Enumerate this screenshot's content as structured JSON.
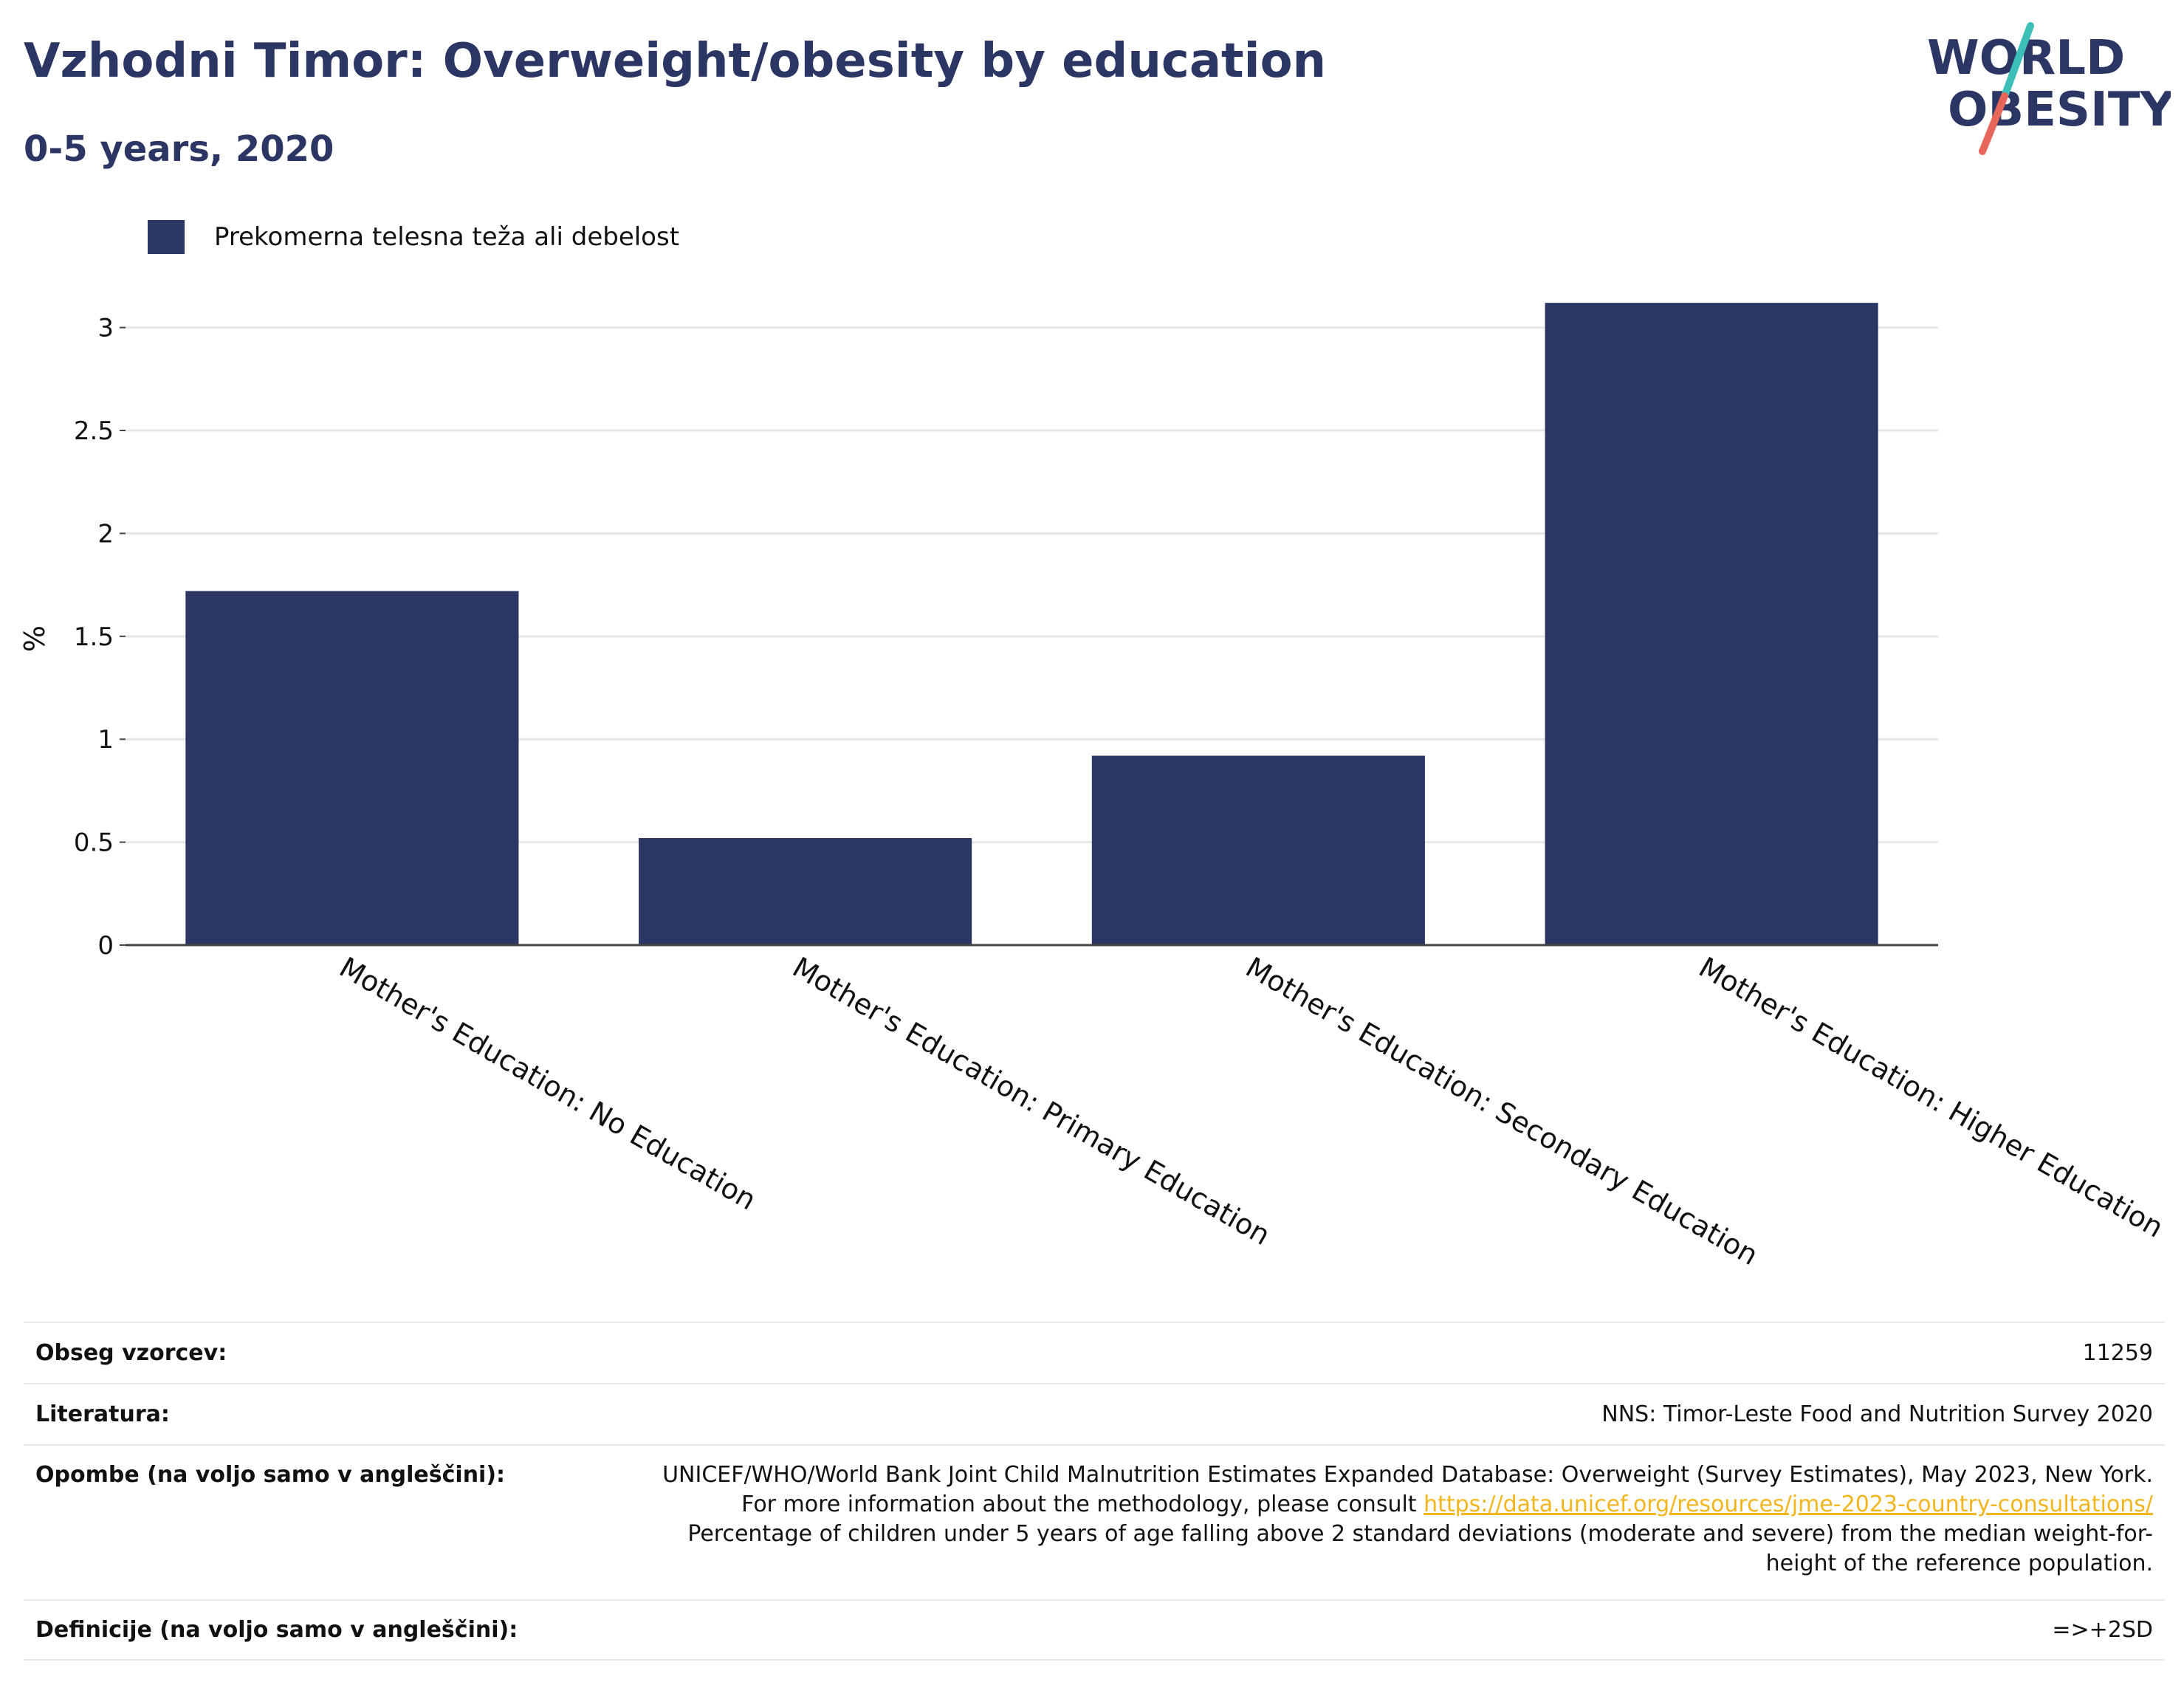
{
  "header": {
    "title": "Vzhodni Timor: Overweight/obesity by education",
    "subtitle": "0-5 years, 2020"
  },
  "logo": {
    "line1": "WORLD",
    "line2": "OBESITY",
    "colors": {
      "text": "#2b3664",
      "slash_top": "#3bbfb7",
      "slash_bottom": "#e8655a"
    }
  },
  "legend": {
    "label": "Prekomerna telesna teža ali debelost",
    "color": "#2b3664"
  },
  "chart_data": {
    "type": "bar",
    "categories": [
      "Mother's Education: No Education",
      "Mother's Education: Primary Education",
      "Mother's Education: Secondary Education",
      "Mother's Education: Higher Education"
    ],
    "series": [
      {
        "name": "Prekomerna telesna teža ali debelost",
        "values": [
          1.72,
          0.52,
          0.92,
          3.12
        ],
        "color": "#2b3664"
      }
    ],
    "ylabel": "%",
    "ylim": [
      0,
      3.3
    ],
    "yticks": [
      0,
      0.5,
      1,
      1.5,
      2,
      2.5,
      3
    ],
    "ytick_labels": [
      "0",
      "0.5",
      "1",
      "1.5",
      "2",
      "2.5",
      "3"
    ],
    "grid": true,
    "legend_position": "top-left"
  },
  "meta": {
    "sample_label": "Obseg vzorcev:",
    "sample_value": "11259",
    "literature_label": "Literatura:",
    "literature_value": "NNS: Timor-Leste Food and Nutrition Survey 2020",
    "notes_label": "Opombe (na voljo samo v angleščini):",
    "notes_text_1": "UNICEF/WHO/World Bank Joint Child Malnutrition Estimates Expanded Database: Overweight (Survey Estimates), May 2023, New York. For more information about the methodology, please consult ",
    "notes_link": "https://data.unicef.org/resources/jme-2023-country-consultations/",
    "notes_text_2": "Percentage of children under 5 years of age falling above 2 standard deviations (moderate and severe) from the median weight-for-height of the reference population.",
    "definitions_label": "Definicije (na voljo samo v angleščini):",
    "definitions_value": "=>+2SD"
  }
}
